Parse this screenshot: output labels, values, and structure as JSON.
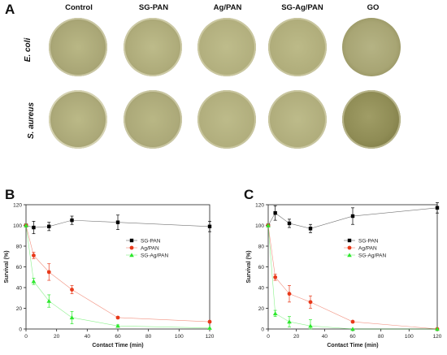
{
  "panel_a": {
    "letter": "A",
    "columns": [
      "Control",
      "SG-PAN",
      "Ag/PAN",
      "SG-Ag/PAN",
      "GO"
    ],
    "rows": [
      "E. coli",
      "S. aureus"
    ]
  },
  "chart_data": [
    {
      "type": "scatter",
      "panel": "B",
      "title": "",
      "xlabel": "Contact Time (min)",
      "ylabel": "Survival (%)",
      "xlim": [
        0,
        120
      ],
      "ylim": [
        0,
        120
      ],
      "xticks": [
        0,
        20,
        40,
        60,
        80,
        100,
        120
      ],
      "yticks": [
        0,
        20,
        40,
        60,
        80,
        100,
        120
      ],
      "legend_position": "right",
      "series": [
        {
          "name": "SG-PAN",
          "color": "#000000",
          "marker": "square",
          "x": [
            0,
            5,
            15,
            30,
            60,
            120
          ],
          "y": [
            100,
            98,
            99,
            105,
            103,
            99
          ],
          "err": [
            0,
            6,
            4,
            4,
            7,
            5
          ]
        },
        {
          "name": "Ag/PAN",
          "color": "#e8391a",
          "marker": "circle",
          "x": [
            0,
            5,
            15,
            30,
            60,
            120
          ],
          "y": [
            100,
            71,
            55,
            38,
            11,
            7
          ],
          "err": [
            0,
            3,
            8,
            4,
            1,
            1
          ]
        },
        {
          "name": "SG-Ag/PAN",
          "color": "#2de82d",
          "marker": "triangle",
          "x": [
            0,
            5,
            15,
            30,
            60,
            120
          ],
          "y": [
            100,
            46,
            27,
            11,
            3,
            1
          ],
          "err": [
            0,
            3,
            6,
            6,
            1,
            0
          ]
        }
      ]
    },
    {
      "type": "scatter",
      "panel": "C",
      "title": "",
      "xlabel": "Contact Time (min)",
      "ylabel": "Survival (%)",
      "xlim": [
        0,
        120
      ],
      "ylim": [
        0,
        120
      ],
      "xticks": [
        0,
        20,
        40,
        60,
        80,
        100,
        120
      ],
      "yticks": [
        0,
        20,
        40,
        60,
        80,
        100,
        120
      ],
      "legend_position": "right",
      "series": [
        {
          "name": "SG-PAN",
          "color": "#000000",
          "marker": "square",
          "x": [
            0,
            5,
            15,
            30,
            60,
            120
          ],
          "y": [
            100,
            112,
            102,
            97,
            109,
            117
          ],
          "err": [
            0,
            7,
            4,
            4,
            8,
            5
          ]
        },
        {
          "name": "Ag/PAN",
          "color": "#e8391a",
          "marker": "circle",
          "x": [
            0,
            5,
            15,
            30,
            60,
            120
          ],
          "y": [
            100,
            50,
            34,
            26,
            7,
            0
          ],
          "err": [
            0,
            3,
            8,
            6,
            1,
            0
          ]
        },
        {
          "name": "SG-Ag/PAN",
          "color": "#2de82d",
          "marker": "triangle",
          "x": [
            0,
            5,
            15,
            30,
            60,
            120
          ],
          "y": [
            100,
            15,
            7,
            3,
            0,
            0
          ],
          "err": [
            0,
            3,
            5,
            6,
            0,
            0
          ]
        }
      ]
    }
  ]
}
